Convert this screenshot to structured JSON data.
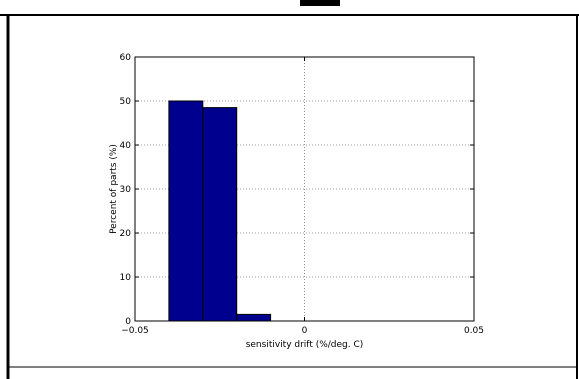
{
  "chart_data": {
    "type": "bar",
    "title": "",
    "xlabel": "sensitivity drift (%/deg. C)",
    "ylabel": "Percent of parts (%)",
    "xlim": [
      -0.05,
      0.05
    ],
    "ylim": [
      0,
      60
    ],
    "grid": true,
    "bar_color": "#00008f",
    "bins": [
      {
        "x0": -0.04,
        "x1": -0.03,
        "value": 50
      },
      {
        "x0": -0.03,
        "x1": -0.02,
        "value": 48.5
      },
      {
        "x0": -0.02,
        "x1": -0.01,
        "value": 1.5
      }
    ],
    "x_ticks": [
      {
        "value": -0.05,
        "label": "−0.05"
      },
      {
        "value": 0,
        "label": "0"
      },
      {
        "value": 0.05,
        "label": "0.05"
      }
    ],
    "y_ticks": [
      {
        "value": 0,
        "label": "0"
      },
      {
        "value": 10,
        "label": "10"
      },
      {
        "value": 20,
        "label": "20"
      },
      {
        "value": 30,
        "label": "30"
      },
      {
        "value": 40,
        "label": "40"
      },
      {
        "value": 50,
        "label": "50"
      },
      {
        "value": 60,
        "label": "60"
      }
    ]
  }
}
